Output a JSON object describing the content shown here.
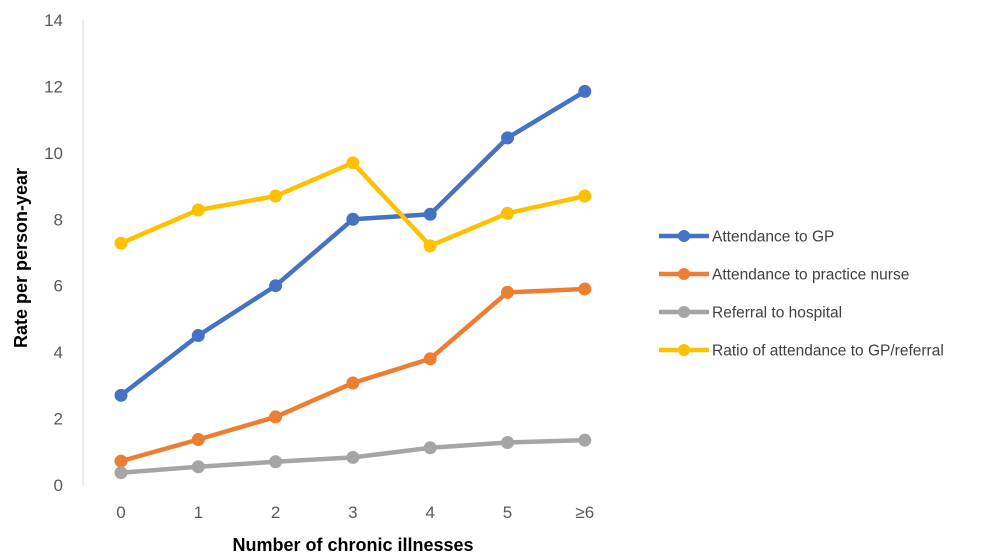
{
  "chart_data": {
    "type": "line",
    "title": "",
    "xlabel": "Number of chronic illnesses",
    "ylabel": "Rate per person-year",
    "categories": [
      "0",
      "1",
      "2",
      "3",
      "4",
      "5",
      "≥6"
    ],
    "yticks": [
      "0",
      "2",
      "4",
      "6",
      "8",
      "10",
      "12",
      "14"
    ],
    "ylim": [
      0,
      14
    ],
    "grid": false,
    "legend_position": "right",
    "series": [
      {
        "name": "Attendance to GP",
        "color": "#4472C4",
        "values": [
          2.7,
          4.5,
          6.0,
          8.0,
          8.15,
          10.45,
          11.85
        ]
      },
      {
        "name": "Attendance to practice nurse",
        "color": "#ED7D31",
        "values": [
          0.72,
          1.37,
          2.05,
          3.07,
          3.8,
          5.8,
          5.9
        ]
      },
      {
        "name": "Referral to hospital",
        "color": "#A5A5A5",
        "values": [
          0.37,
          0.55,
          0.7,
          0.83,
          1.12,
          1.28,
          1.35
        ]
      },
      {
        "name": "Ratio of attendance to GP/referral",
        "color": "#FFC000",
        "values": [
          7.28,
          8.28,
          8.7,
          9.7,
          7.2,
          8.18,
          8.7
        ]
      }
    ]
  }
}
